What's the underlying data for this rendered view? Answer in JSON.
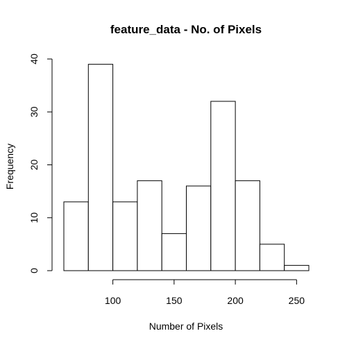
{
  "chart_data": {
    "type": "bar",
    "title": "feature_data - No. of Pixels",
    "xlabel": "Number of Pixels",
    "ylabel": "Frequency",
    "bins": [
      {
        "start": 60,
        "end": 80,
        "count": 13
      },
      {
        "start": 80,
        "end": 100,
        "count": 39
      },
      {
        "start": 100,
        "end": 120,
        "count": 13
      },
      {
        "start": 120,
        "end": 140,
        "count": 17
      },
      {
        "start": 140,
        "end": 160,
        "count": 7
      },
      {
        "start": 160,
        "end": 180,
        "count": 16
      },
      {
        "start": 180,
        "end": 200,
        "count": 32
      },
      {
        "start": 200,
        "end": 220,
        "count": 17
      },
      {
        "start": 220,
        "end": 240,
        "count": 5
      },
      {
        "start": 240,
        "end": 260,
        "count": 1
      }
    ],
    "xlim": [
      60,
      260
    ],
    "ylim": [
      0,
      40
    ],
    "x_ticks": [
      100,
      150,
      200,
      250
    ],
    "x_tick_labels": [
      "100",
      "150",
      "200",
      "250"
    ],
    "y_ticks": [
      0,
      10,
      20,
      30,
      40
    ],
    "y_tick_labels": [
      "0",
      "10",
      "20",
      "30",
      "40"
    ],
    "grid": false,
    "bar_fill": "#ffffff",
    "bar_stroke": "#000000"
  }
}
